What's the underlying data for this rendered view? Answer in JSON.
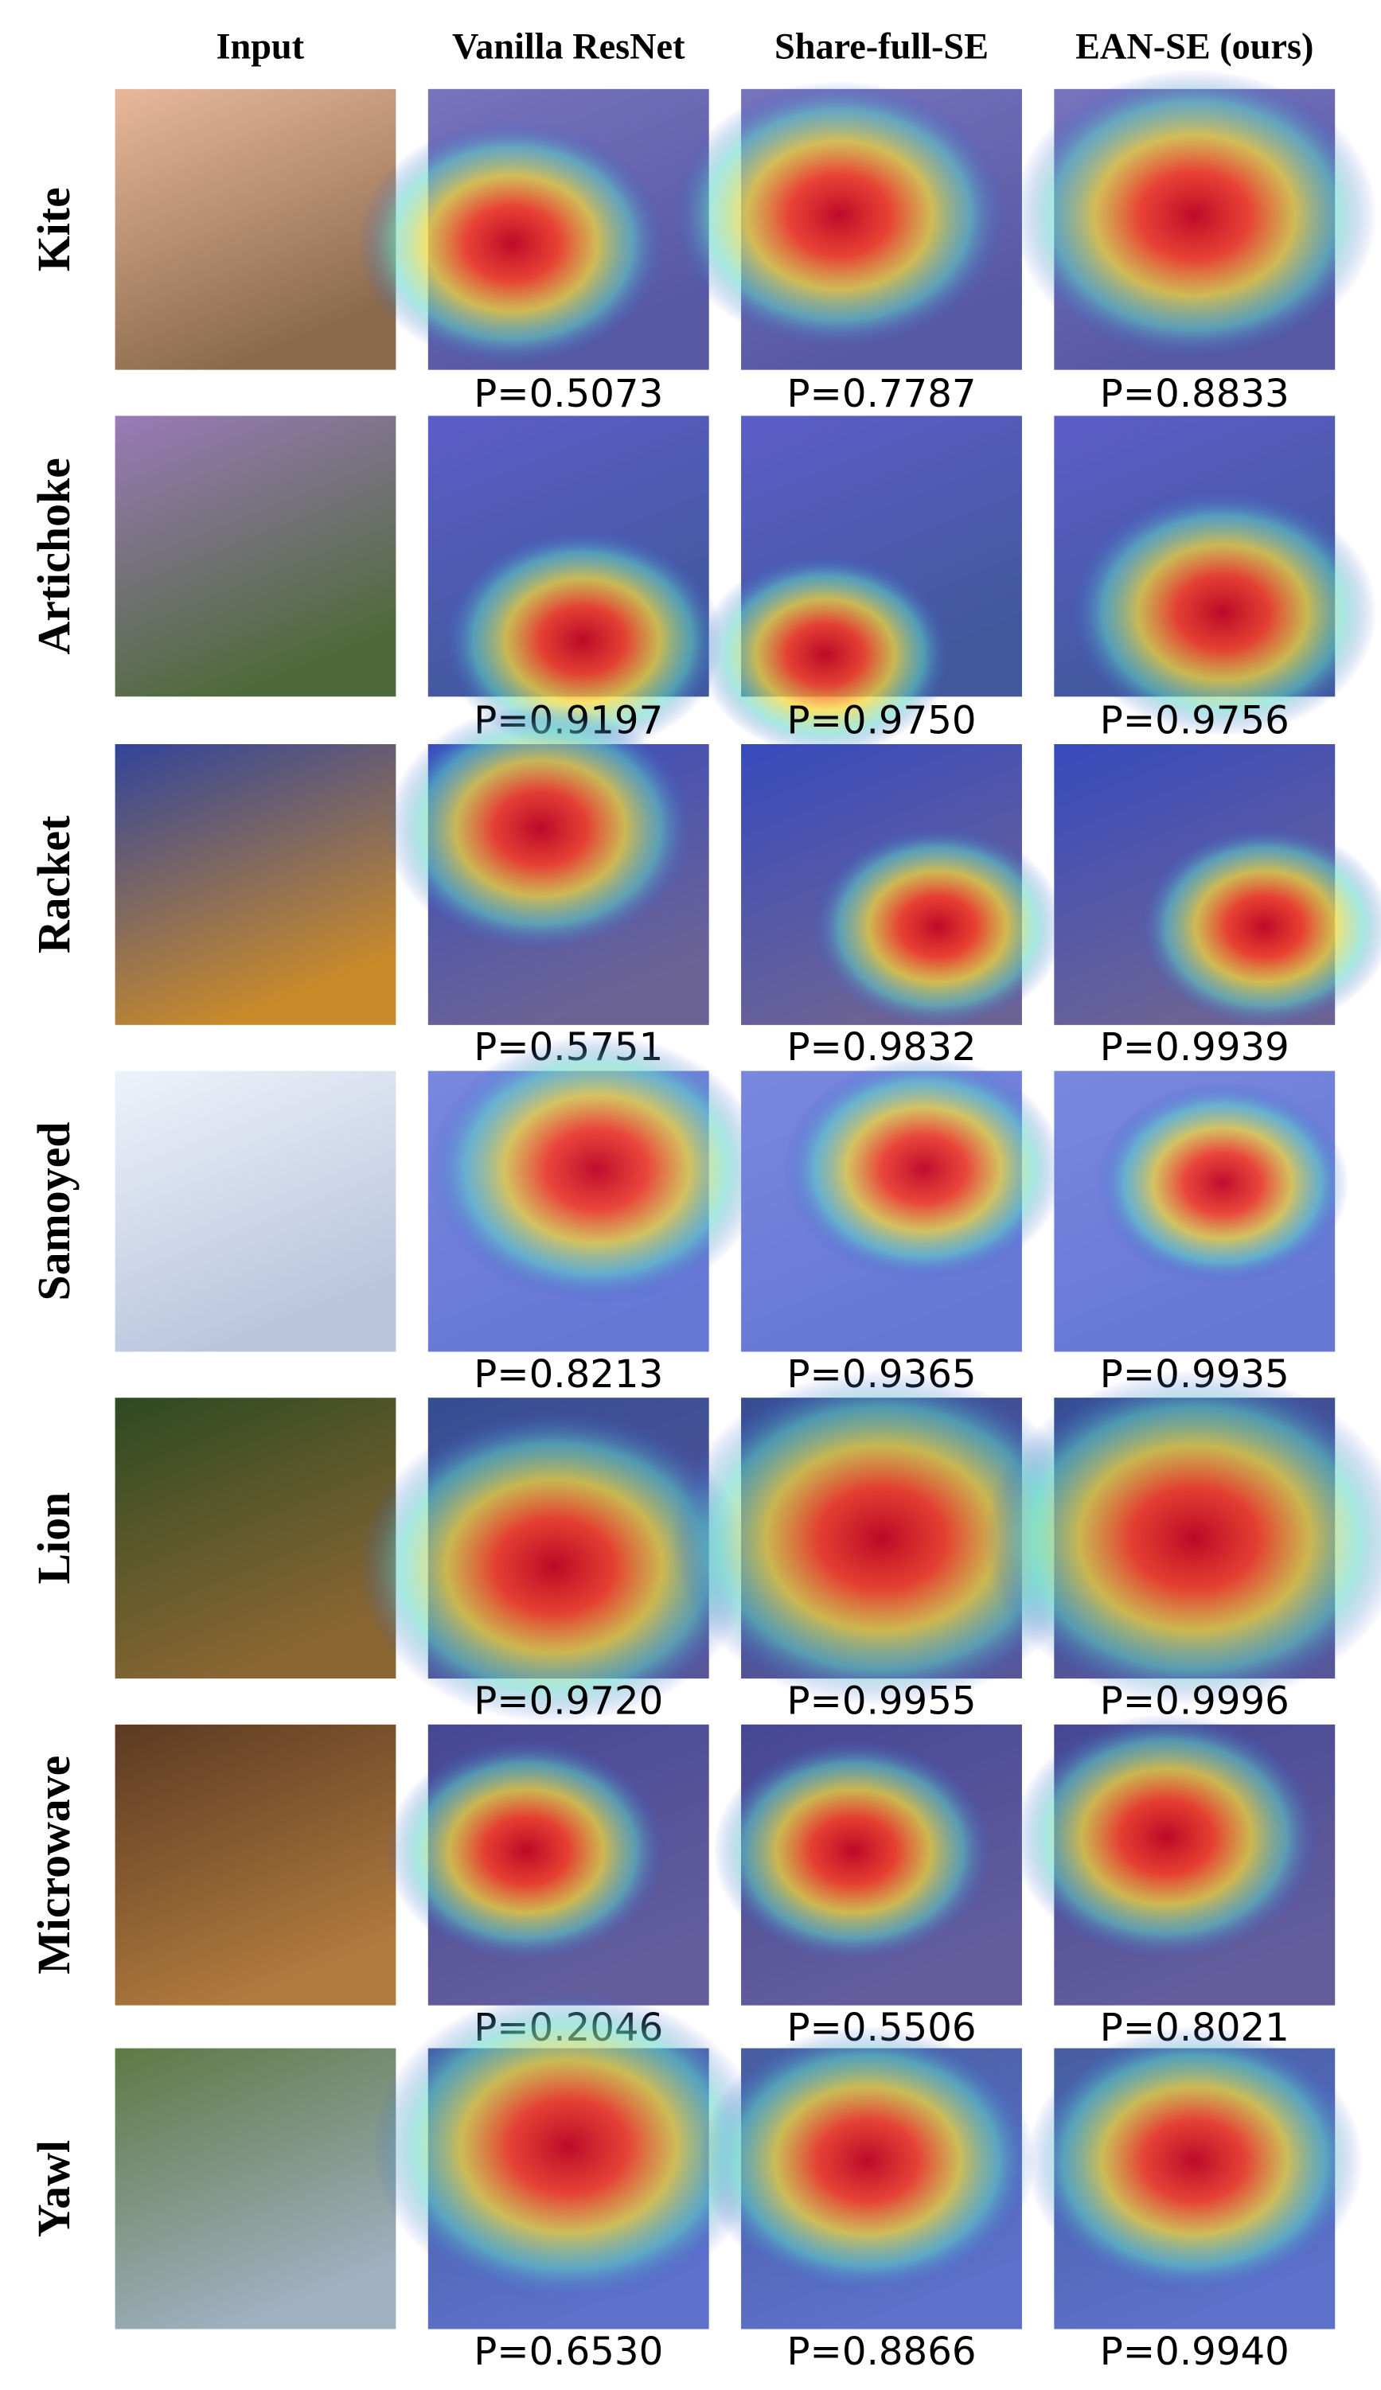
{
  "header": {
    "columns": [
      "Input",
      "Vanilla ResNet",
      "Share-full-SE",
      "EAN-SE (ours)"
    ]
  },
  "rows": [
    {
      "label": "Kite",
      "scores": [
        "P=0.5073",
        "P=0.7787",
        "P=0.8833"
      ]
    },
    {
      "label": "Artichoke",
      "scores": [
        "P=0.9197",
        "P=0.9750",
        "P=0.9756"
      ]
    },
    {
      "label": "Racket",
      "scores": [
        "P=0.5751",
        "P=0.9832",
        "P=0.9939"
      ]
    },
    {
      "label": "Samoyed",
      "scores": [
        "P=0.8213",
        "P=0.9365",
        "P=0.9935"
      ]
    },
    {
      "label": "Lion",
      "scores": [
        "P=0.9720",
        "P=0.9955",
        "P=0.9996"
      ]
    },
    {
      "label": "Microwave",
      "scores": [
        "P=0.2046",
        "P=0.5506",
        "P=0.8021"
      ]
    },
    {
      "label": "Yawl",
      "scores": [
        "P=0.6530",
        "P=0.8866",
        "P=0.9940"
      ]
    }
  ]
}
